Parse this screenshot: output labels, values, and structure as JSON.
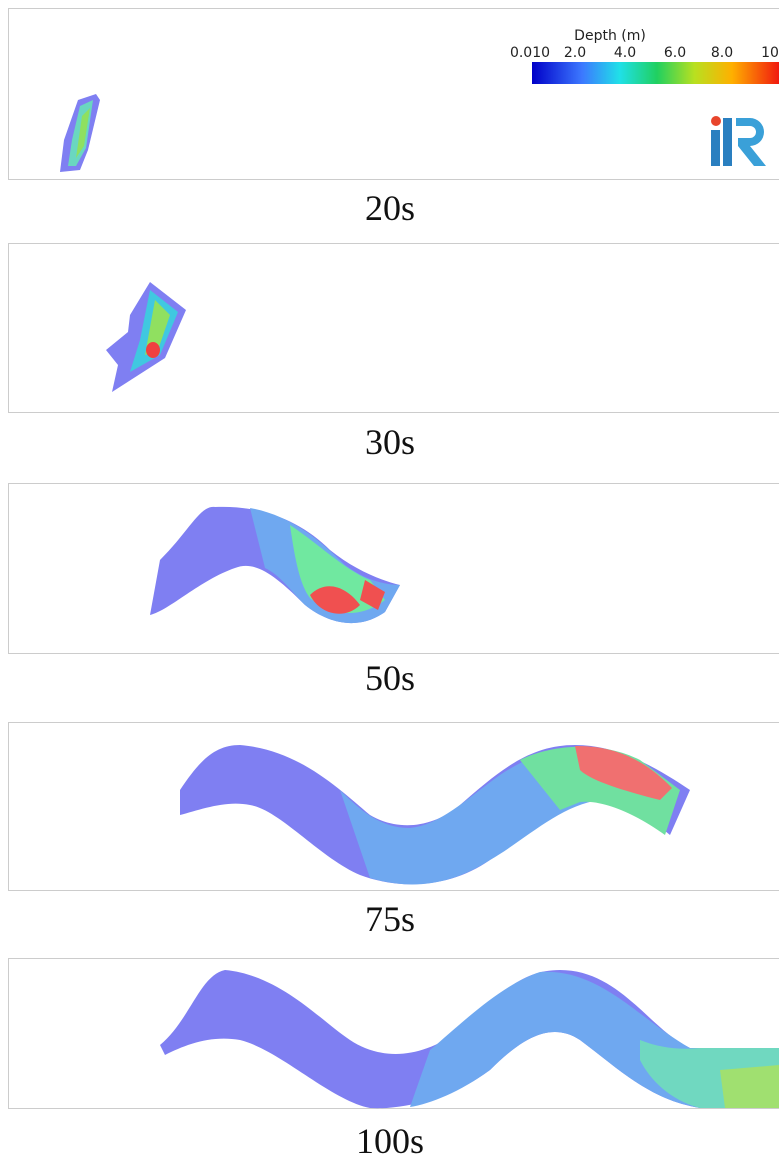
{
  "colorbar": {
    "title": "Depth (m)",
    "ticks": [
      "0.010",
      "2.0",
      "4.0",
      "6.0",
      "8.0",
      "10"
    ]
  },
  "panels": [
    {
      "caption": "20s"
    },
    {
      "caption": "30s"
    },
    {
      "caption": "50s"
    },
    {
      "caption": "75s"
    },
    {
      "caption": "100s"
    }
  ]
}
